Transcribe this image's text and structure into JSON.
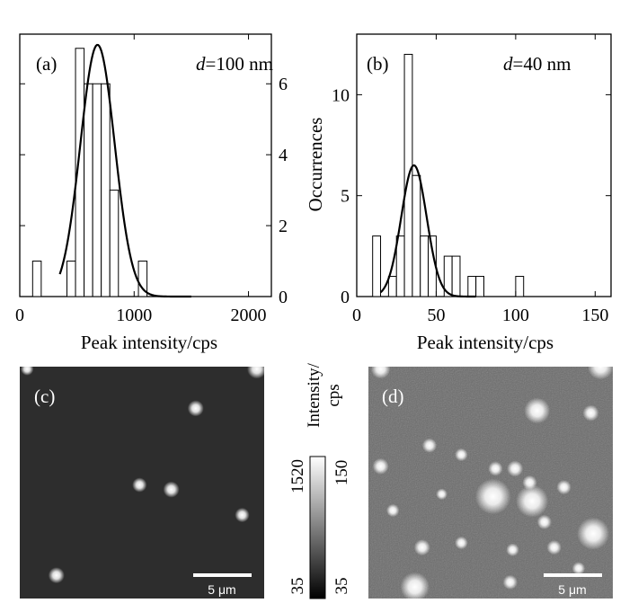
{
  "chart_data": [
    {
      "type": "bar",
      "panel_label": "(a)",
      "annotation": {
        "italic": "d",
        "rest": "=100 nm"
      },
      "xlabel": "Peak intensity/cps",
      "ylabel": "",
      "xlim": [
        0,
        2200
      ],
      "ylim": [
        0,
        7.4
      ],
      "xticks": [
        0,
        1000,
        2000
      ],
      "yticks": [
        0,
        2,
        4,
        6
      ],
      "y_axis_side": "right",
      "bin_width": 75,
      "bins": [
        {
          "x": 150,
          "count": 1
        },
        {
          "x": 450,
          "count": 1
        },
        {
          "x": 525,
          "count": 7
        },
        {
          "x": 600,
          "count": 6
        },
        {
          "x": 675,
          "count": 6
        },
        {
          "x": 750,
          "count": 6
        },
        {
          "x": 825,
          "count": 3
        },
        {
          "x": 1075,
          "count": 1
        }
      ],
      "fit": {
        "type": "gaussian",
        "center": 680,
        "sigma": 150,
        "peak": 7.1,
        "range": [
          350,
          1500
        ]
      }
    },
    {
      "type": "bar",
      "panel_label": "(b)",
      "annotation": {
        "italic": "d",
        "rest": "=40 nm"
      },
      "xlabel": "Peak intensity/cps",
      "ylabel": "Occurrences",
      "xlim": [
        0,
        160
      ],
      "ylim": [
        0,
        13
      ],
      "xticks": [
        0,
        50,
        100,
        150
      ],
      "yticks": [
        0,
        5,
        10
      ],
      "y_axis_side": "left",
      "bin_width": 5,
      "bins": [
        {
          "x": 12.5,
          "count": 3
        },
        {
          "x": 22.5,
          "count": 1
        },
        {
          "x": 27.5,
          "count": 3
        },
        {
          "x": 32.5,
          "count": 12
        },
        {
          "x": 37.5,
          "count": 6
        },
        {
          "x": 42.5,
          "count": 3
        },
        {
          "x": 47.5,
          "count": 3
        },
        {
          "x": 57.5,
          "count": 2
        },
        {
          "x": 62.5,
          "count": 2
        },
        {
          "x": 72.5,
          "count": 1
        },
        {
          "x": 77.5,
          "count": 1
        },
        {
          "x": 102.5,
          "count": 1
        }
      ],
      "fit": {
        "type": "gaussian",
        "center": 36,
        "sigma": 8,
        "peak": 6.5,
        "range": [
          15,
          75
        ]
      }
    },
    {
      "type": "heatmap",
      "panel_label": "(c)",
      "scalebar_label": "5 μm",
      "background": "#2d2d2d",
      "spots": [
        [
          0.97,
          0.01,
          1.2
        ],
        [
          0.72,
          0.18,
          1.0
        ],
        [
          0.49,
          0.51,
          0.9
        ],
        [
          0.62,
          0.53,
          1.0
        ],
        [
          0.91,
          0.64,
          0.9
        ],
        [
          0.15,
          0.9,
          1.0
        ],
        [
          0.03,
          0.01,
          0.8
        ]
      ]
    },
    {
      "type": "heatmap",
      "panel_label": "(d)",
      "scalebar_label": "5 μm",
      "background": "#6a6a6a",
      "spots": [
        [
          0.95,
          0.0,
          1.6
        ],
        [
          0.05,
          0.01,
          1.2
        ],
        [
          0.69,
          0.19,
          1.6
        ],
        [
          0.91,
          0.2,
          1.0
        ],
        [
          0.05,
          0.43,
          1.0
        ],
        [
          0.25,
          0.34,
          0.9
        ],
        [
          0.38,
          0.38,
          0.8
        ],
        [
          0.52,
          0.44,
          0.9
        ],
        [
          0.6,
          0.44,
          1.0
        ],
        [
          0.66,
          0.5,
          0.9
        ],
        [
          0.51,
          0.56,
          2.2
        ],
        [
          0.67,
          0.58,
          2.0
        ],
        [
          0.8,
          0.52,
          0.9
        ],
        [
          0.72,
          0.67,
          0.9
        ],
        [
          0.92,
          0.72,
          2.0
        ],
        [
          0.22,
          0.78,
          1.0
        ],
        [
          0.38,
          0.76,
          0.8
        ],
        [
          0.59,
          0.79,
          0.8
        ],
        [
          0.76,
          0.78,
          0.9
        ],
        [
          0.19,
          0.95,
          1.8
        ],
        [
          0.58,
          0.93,
          0.9
        ],
        [
          0.1,
          0.62,
          0.8
        ],
        [
          0.86,
          0.87,
          0.8
        ],
        [
          0.3,
          0.55,
          0.7
        ]
      ]
    }
  ],
  "colorbar": {
    "title": "Intensity/",
    "unit": "cps",
    "left_max": "1520",
    "left_min": "35",
    "right_max": "150",
    "right_min": "35"
  }
}
